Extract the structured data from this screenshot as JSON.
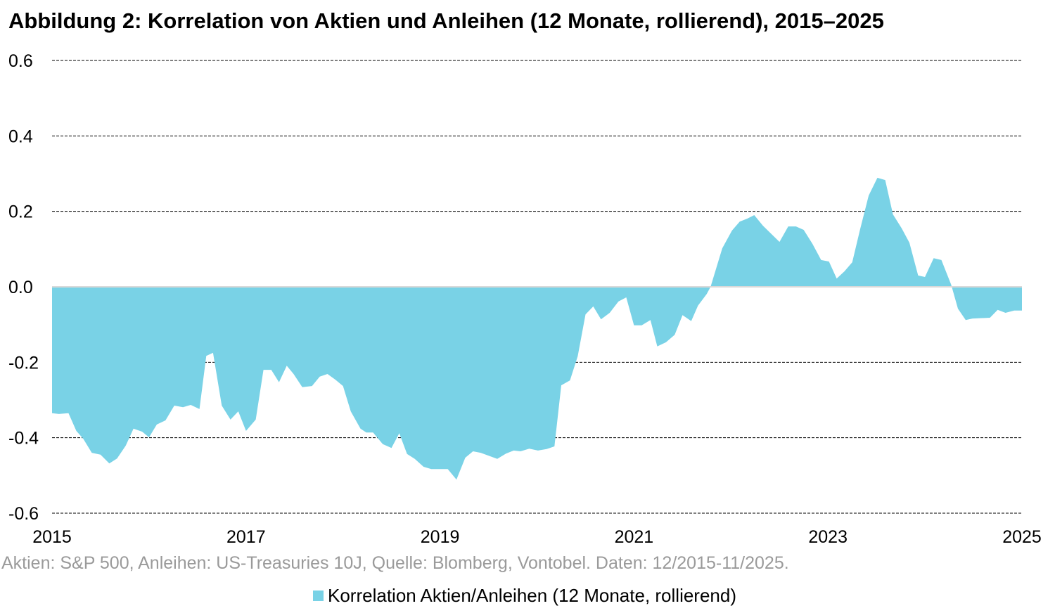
{
  "chart_data": {
    "type": "area",
    "title": "Abbildung 2: Korrelation von Aktien und Anleihen (12 Monate, rollierend), 2015–2025",
    "xlabel": "",
    "ylabel": "",
    "xlim": [
      2015,
      2025
    ],
    "ylim": [
      -0.6,
      0.6
    ],
    "x_ticks": [
      "2015",
      "2017",
      "2019",
      "2021",
      "2023",
      "2025"
    ],
    "y_ticks": [
      "0.6",
      "0.4",
      "0.2",
      "0.0",
      "-0.2",
      "-0.4",
      "-0.6"
    ],
    "grid": "horizontal dashed",
    "legend": "bottom",
    "source_note": "Aktien: S&P 500, Anleihen: US-Treasuries 10J, Quelle: Blomberg, Vontobel. Daten: 12/2015-11/2025.",
    "colors": {
      "area": "#79D2E6",
      "zero_line": "#d9d9d9",
      "grid": "#000000",
      "source": "#9a9a9a"
    },
    "series": [
      {
        "name": "Korrelation Aktien/Anleihen (12 Monate, rollierend)",
        "x": [
          2015.0,
          2015.07,
          2015.17,
          2015.25,
          2015.32,
          2015.41,
          2015.5,
          2015.59,
          2015.67,
          2015.76,
          2015.84,
          2015.93,
          2016.0,
          2016.08,
          2016.17,
          2016.26,
          2016.35,
          2016.43,
          2016.52,
          2016.59,
          2016.66,
          2016.75,
          2016.84,
          2016.92,
          2017.0,
          2017.1,
          2017.18,
          2017.26,
          2017.34,
          2017.42,
          2017.49,
          2017.58,
          2017.68,
          2017.76,
          2017.84,
          2017.92,
          2018.0,
          2018.08,
          2018.18,
          2018.24,
          2018.31,
          2018.41,
          2018.5,
          2018.58,
          2018.66,
          2018.74,
          2018.83,
          2018.91,
          2019.08,
          2019.17,
          2019.26,
          2019.34,
          2019.42,
          2019.59,
          2019.68,
          2019.76,
          2019.83,
          2019.92,
          2020.01,
          2020.1,
          2020.18,
          2020.25,
          2020.34,
          2020.42,
          2020.5,
          2020.58,
          2020.66,
          2020.75,
          2020.84,
          2020.92,
          2021.0,
          2021.08,
          2021.17,
          2021.24,
          2021.33,
          2021.42,
          2021.5,
          2021.59,
          2021.66,
          2021.75,
          2021.79,
          2021.91,
          2022.01,
          2022.09,
          2022.17,
          2022.24,
          2022.33,
          2022.5,
          2022.59,
          2022.67,
          2022.75,
          2022.84,
          2022.93,
          2023.01,
          2023.09,
          2023.17,
          2023.25,
          2023.33,
          2023.42,
          2023.51,
          2023.59,
          2023.67,
          2023.76,
          2023.84,
          2023.93,
          2024.0,
          2024.09,
          2024.17,
          2024.27,
          2024.34,
          2024.42,
          2024.49,
          2024.67,
          2024.75,
          2024.83,
          2024.92,
          2025.0
        ],
        "values": [
          -0.335,
          -0.337,
          -0.335,
          -0.382,
          -0.402,
          -0.44,
          -0.445,
          -0.468,
          -0.455,
          -0.421,
          -0.376,
          -0.384,
          -0.399,
          -0.365,
          -0.354,
          -0.315,
          -0.319,
          -0.313,
          -0.324,
          -0.183,
          -0.175,
          -0.315,
          -0.352,
          -0.33,
          -0.382,
          -0.352,
          -0.22,
          -0.22,
          -0.253,
          -0.209,
          -0.231,
          -0.266,
          -0.263,
          -0.238,
          -0.231,
          -0.246,
          -0.263,
          -0.33,
          -0.376,
          -0.386,
          -0.386,
          -0.417,
          -0.427,
          -0.388,
          -0.443,
          -0.456,
          -0.477,
          -0.483,
          -0.483,
          -0.511,
          -0.453,
          -0.436,
          -0.44,
          -0.456,
          -0.442,
          -0.434,
          -0.436,
          -0.429,
          -0.434,
          -0.43,
          -0.423,
          -0.261,
          -0.248,
          -0.184,
          -0.073,
          -0.052,
          -0.086,
          -0.069,
          -0.039,
          -0.028,
          -0.102,
          -0.102,
          -0.088,
          -0.158,
          -0.147,
          -0.127,
          -0.075,
          -0.091,
          -0.05,
          -0.019,
          0.0,
          0.102,
          0.149,
          0.173,
          0.181,
          0.19,
          0.162,
          0.119,
          0.16,
          0.16,
          0.151,
          0.114,
          0.071,
          0.067,
          0.022,
          0.041,
          0.065,
          0.151,
          0.242,
          0.289,
          0.283,
          0.192,
          0.155,
          0.117,
          0.03,
          0.026,
          0.076,
          0.071,
          0.006,
          -0.058,
          -0.088,
          -0.084,
          -0.082,
          -0.061,
          -0.069,
          -0.063,
          -0.063
        ]
      }
    ]
  }
}
